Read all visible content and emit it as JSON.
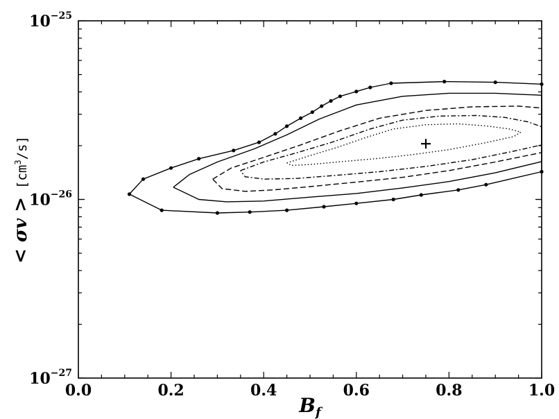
{
  "chart_data": {
    "type": "contour",
    "xlabel_main": "B",
    "xlabel_sub": "f",
    "ylabel_math": "< σv >",
    "ylabel_unit_pre": "[cm",
    "ylabel_unit_exp": "3",
    "ylabel_unit_post": "/s]",
    "xlim": [
      0.0,
      1.0
    ],
    "ylim": [
      1e-27,
      1e-25
    ],
    "yscale": "log",
    "x_ticks": [
      "0.0",
      "0.2",
      "0.4",
      "0.6",
      "0.8",
      "1.0"
    ],
    "y_ticks": [
      {
        "value": 1e-27,
        "base": "10",
        "exp": "−27"
      },
      {
        "value": 1e-26,
        "base": "10",
        "exp": "−26"
      },
      {
        "value": 1e-25,
        "base": "10",
        "exp": "−25"
      }
    ],
    "best_fit": {
      "x": 0.75,
      "y": 2.05e-26,
      "marker": "+"
    },
    "contours": [
      {
        "style": "solid-dots",
        "points": [
          [
            0.11,
            1.07e-26
          ],
          [
            0.14,
            1.3e-26
          ],
          [
            0.2,
            1.5e-26
          ],
          [
            0.26,
            1.69e-26
          ],
          [
            0.335,
            1.88e-26
          ],
          [
            0.39,
            2.09e-26
          ],
          [
            0.425,
            2.33e-26
          ],
          [
            0.45,
            2.57e-26
          ],
          [
            0.48,
            2.85e-26
          ],
          [
            0.505,
            3.08e-26
          ],
          [
            0.525,
            3.33e-26
          ],
          [
            0.545,
            3.56e-26
          ],
          [
            0.565,
            3.78e-26
          ],
          [
            0.6,
            4.02e-26
          ],
          [
            0.63,
            4.24e-26
          ],
          [
            0.675,
            4.47e-26
          ],
          [
            0.79,
            4.57e-26
          ],
          [
            0.9,
            4.53e-26
          ],
          [
            1.0,
            4.42e-26
          ],
          [
            1.0,
            1.43e-26
          ],
          [
            0.88,
            1.21e-26
          ],
          [
            0.82,
            1.13e-26
          ],
          [
            0.74,
            1.06e-26
          ],
          [
            0.68,
            1e-26
          ],
          [
            0.6,
            9.5e-27
          ],
          [
            0.53,
            9.1e-27
          ],
          [
            0.45,
            8.7e-27
          ],
          [
            0.37,
            8.5e-27
          ],
          [
            0.3,
            8.4e-27
          ],
          [
            0.18,
            8.7e-27
          ],
          [
            0.11,
            1.07e-26
          ]
        ],
        "dot_points": [
          [
            0.11,
            1.07e-26
          ],
          [
            0.14,
            1.3e-26
          ],
          [
            0.2,
            1.5e-26
          ],
          [
            0.26,
            1.69e-26
          ],
          [
            0.335,
            1.88e-26
          ],
          [
            0.39,
            2.09e-26
          ],
          [
            0.425,
            2.33e-26
          ],
          [
            0.45,
            2.57e-26
          ],
          [
            0.48,
            2.85e-26
          ],
          [
            0.505,
            3.08e-26
          ],
          [
            0.525,
            3.33e-26
          ],
          [
            0.545,
            3.56e-26
          ],
          [
            0.565,
            3.78e-26
          ],
          [
            0.6,
            4.02e-26
          ],
          [
            0.63,
            4.24e-26
          ],
          [
            0.675,
            4.47e-26
          ],
          [
            0.79,
            4.57e-26
          ],
          [
            0.9,
            4.53e-26
          ],
          [
            1.0,
            4.42e-26
          ],
          [
            1.0,
            1.43e-26
          ],
          [
            0.88,
            1.21e-26
          ],
          [
            0.82,
            1.13e-26
          ],
          [
            0.74,
            1.06e-26
          ],
          [
            0.68,
            1e-26
          ],
          [
            0.6,
            9.5e-27
          ],
          [
            0.53,
            9.1e-27
          ],
          [
            0.45,
            8.7e-27
          ],
          [
            0.37,
            8.5e-27
          ],
          [
            0.3,
            8.4e-27
          ],
          [
            0.18,
            8.7e-27
          ]
        ]
      },
      {
        "style": "solid",
        "points": [
          [
            0.205,
            1.17e-26
          ],
          [
            0.24,
            1.38e-26
          ],
          [
            0.3,
            1.62e-26
          ],
          [
            0.38,
            1.92e-26
          ],
          [
            0.45,
            2.3e-26
          ],
          [
            0.52,
            2.82e-26
          ],
          [
            0.6,
            3.38e-26
          ],
          [
            0.7,
            3.78e-26
          ],
          [
            0.8,
            3.93e-26
          ],
          [
            0.9,
            3.93e-26
          ],
          [
            1.0,
            3.83e-26
          ],
          [
            1.0,
            1.63e-26
          ],
          [
            0.9,
            1.41e-26
          ],
          [
            0.8,
            1.26e-26
          ],
          [
            0.7,
            1.16e-26
          ],
          [
            0.6,
            1.08e-26
          ],
          [
            0.5,
            1.03e-26
          ],
          [
            0.4,
            9.8e-27
          ],
          [
            0.32,
            9.7e-27
          ],
          [
            0.26,
            1e-26
          ],
          [
            0.205,
            1.17e-26
          ]
        ]
      },
      {
        "style": "dashed",
        "points": [
          [
            0.29,
            1.3e-26
          ],
          [
            0.33,
            1.5e-26
          ],
          [
            0.4,
            1.72e-26
          ],
          [
            0.48,
            2.02e-26
          ],
          [
            0.56,
            2.4e-26
          ],
          [
            0.65,
            2.85e-26
          ],
          [
            0.75,
            3.15e-26
          ],
          [
            0.85,
            3.3e-26
          ],
          [
            0.95,
            3.33e-26
          ],
          [
            1.0,
            3.25e-26
          ],
          [
            1.0,
            1.83e-26
          ],
          [
            0.9,
            1.62e-26
          ],
          [
            0.8,
            1.45e-26
          ],
          [
            0.7,
            1.33e-26
          ],
          [
            0.6,
            1.25e-26
          ],
          [
            0.5,
            1.18e-26
          ],
          [
            0.42,
            1.13e-26
          ],
          [
            0.36,
            1.11e-26
          ],
          [
            0.31,
            1.15e-26
          ],
          [
            0.29,
            1.3e-26
          ]
        ]
      },
      {
        "style": "dashdot",
        "points": [
          [
            0.35,
            1.45e-26
          ],
          [
            0.4,
            1.62e-26
          ],
          [
            0.47,
            1.82e-26
          ],
          [
            0.55,
            2.1e-26
          ],
          [
            0.63,
            2.48e-26
          ],
          [
            0.7,
            2.78e-26
          ],
          [
            0.78,
            2.93e-26
          ],
          [
            0.86,
            2.95e-26
          ],
          [
            0.92,
            2.88e-26
          ],
          [
            0.97,
            2.72e-26
          ],
          [
            1.0,
            2.55e-26
          ],
          [
            1.0,
            2.02e-26
          ],
          [
            0.93,
            1.84e-26
          ],
          [
            0.85,
            1.67e-26
          ],
          [
            0.75,
            1.53e-26
          ],
          [
            0.65,
            1.43e-26
          ],
          [
            0.55,
            1.36e-26
          ],
          [
            0.47,
            1.31e-26
          ],
          [
            0.4,
            1.3e-26
          ],
          [
            0.36,
            1.34e-26
          ],
          [
            0.35,
            1.45e-26
          ]
        ]
      },
      {
        "style": "dotted",
        "points": [
          [
            0.45,
            1.6e-26
          ],
          [
            0.5,
            1.76e-26
          ],
          [
            0.56,
            1.96e-26
          ],
          [
            0.62,
            2.22e-26
          ],
          [
            0.68,
            2.48e-26
          ],
          [
            0.75,
            2.62e-26
          ],
          [
            0.82,
            2.65e-26
          ],
          [
            0.88,
            2.58e-26
          ],
          [
            0.93,
            2.48e-26
          ],
          [
            0.955,
            2.38e-26
          ],
          [
            0.94,
            2.25e-26
          ],
          [
            0.88,
            2.08e-26
          ],
          [
            0.8,
            1.9e-26
          ],
          [
            0.72,
            1.78e-26
          ],
          [
            0.65,
            1.7e-26
          ],
          [
            0.57,
            1.63e-26
          ],
          [
            0.5,
            1.57e-26
          ],
          [
            0.46,
            1.55e-26
          ],
          [
            0.45,
            1.6e-26
          ]
        ]
      }
    ]
  }
}
